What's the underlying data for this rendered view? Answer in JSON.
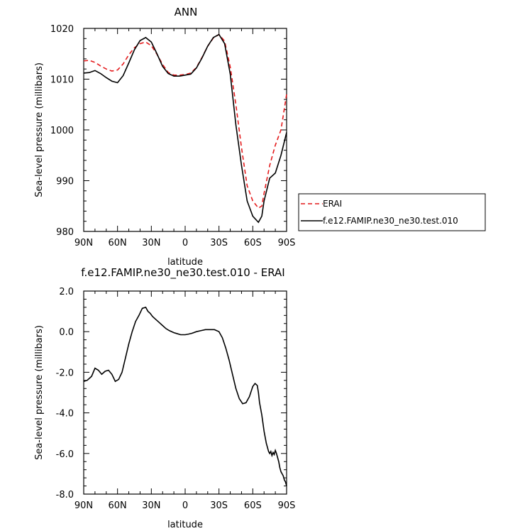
{
  "colors": {
    "erai": "#e41a1c",
    "model": "#000000",
    "axes": "#000000",
    "background": "#ffffff"
  },
  "chart_data": [
    {
      "type": "line",
      "title": "ANN",
      "xlabel": "latitude",
      "ylabel": "Sea-level pressure (millibars)",
      "xlim": [
        90,
        -90
      ],
      "ylim": [
        980,
        1020
      ],
      "xticks": [
        90,
        60,
        30,
        0,
        -30,
        -60,
        -90
      ],
      "xtick_labels": [
        "90N",
        "60N",
        "30N",
        "0",
        "30S",
        "60S",
        "90S"
      ],
      "yticks": [
        980,
        990,
        1000,
        1010,
        1020
      ],
      "ytick_labels": [
        "980",
        "990",
        "1000",
        "1010",
        "1020"
      ],
      "legend": {
        "placement": "right",
        "entries": [
          "ERAI",
          "f.e12.FAMIP.ne30_ne30.test.010"
        ]
      },
      "series": [
        {
          "name": "ERAI",
          "style": "dashed",
          "color": "#e41a1c",
          "x": [
            90,
            85,
            80,
            75,
            70,
            65,
            60,
            55,
            50,
            45,
            40,
            35,
            30,
            25,
            20,
            15,
            10,
            5,
            0,
            -5,
            -10,
            -15,
            -20,
            -25,
            -30,
            -35,
            -40,
            -45,
            -50,
            -55,
            -60,
            -65,
            -68,
            -70,
            -75,
            -80,
            -85,
            -90
          ],
          "y": [
            1013.6,
            1013.7,
            1013.3,
            1012.6,
            1012.0,
            1011.6,
            1011.8,
            1013.0,
            1014.8,
            1016.2,
            1017.0,
            1017.3,
            1016.6,
            1014.9,
            1012.9,
            1011.3,
            1010.8,
            1010.8,
            1010.9,
            1011.2,
            1012.3,
            1014.3,
            1016.5,
            1018.1,
            1018.8,
            1017.5,
            1012.4,
            1005.0,
            996.5,
            989.0,
            986.0,
            984.6,
            985.0,
            987.5,
            993.0,
            997.0,
            1000.0,
            1007.0
          ]
        },
        {
          "name": "f.e12.FAMIP.ne30_ne30.test.010",
          "style": "solid",
          "color": "#000000",
          "x": [
            90,
            85,
            80,
            75,
            70,
            65,
            60,
            55,
            50,
            45,
            40,
            35,
            30,
            25,
            20,
            15,
            10,
            5,
            0,
            -5,
            -10,
            -15,
            -20,
            -25,
            -30,
            -35,
            -40,
            -45,
            -50,
            -55,
            -60,
            -65,
            -68,
            -70,
            -75,
            -80,
            -85,
            -90
          ],
          "y": [
            1011.2,
            1011.3,
            1011.7,
            1011.1,
            1010.3,
            1009.6,
            1009.3,
            1010.7,
            1013.2,
            1015.8,
            1017.6,
            1018.2,
            1017.3,
            1015.0,
            1012.5,
            1011.1,
            1010.6,
            1010.6,
            1010.8,
            1011.0,
            1012.2,
            1014.2,
            1016.5,
            1018.2,
            1018.8,
            1017.0,
            1011.0,
            1001.0,
            993.0,
            986.0,
            983.0,
            981.8,
            983.0,
            986.0,
            990.5,
            991.5,
            995.0,
            999.5
          ]
        }
      ]
    },
    {
      "type": "line",
      "title": "f.e12.FAMIP.ne30_ne30.test.010 - ERAI",
      "xlabel": "latitude",
      "ylabel": "Sea-level pressure (millibars)",
      "xlim": [
        90,
        -90
      ],
      "ylim": [
        -8.0,
        2.0
      ],
      "xticks": [
        90,
        60,
        30,
        0,
        -30,
        -60,
        -90
      ],
      "xtick_labels": [
        "90N",
        "60N",
        "30N",
        "0",
        "30S",
        "60S",
        "90S"
      ],
      "yticks": [
        -8.0,
        -6.0,
        -4.0,
        -2.0,
        0.0,
        2.0
      ],
      "ytick_labels": [
        "-8.0",
        "-6.0",
        "-4.0",
        "-2.0",
        "0.0",
        "2.0"
      ],
      "series": [
        {
          "style": "solid",
          "color": "#000000",
          "x": [
            90,
            87,
            85,
            83,
            80,
            77,
            74,
            71,
            68,
            65,
            62,
            59,
            56,
            53,
            50,
            47,
            44,
            41,
            38,
            35,
            33,
            31,
            29,
            26,
            23,
            20,
            17,
            14,
            10,
            7,
            4,
            0,
            -3,
            -6,
            -10,
            -14,
            -18,
            -22,
            -26,
            -30,
            -33,
            -36,
            -39,
            -42,
            -45,
            -48,
            -51,
            -54,
            -57,
            -60,
            -62,
            -64,
            -65,
            -66,
            -67,
            -68,
            -69,
            -70,
            -71,
            -72,
            -73,
            -74,
            -75,
            -76,
            -77,
            -78,
            -79,
            -80,
            -81,
            -82,
            -83,
            -84,
            -85,
            -86,
            -87,
            -88,
            -89,
            -90
          ],
          "y": [
            -2.45,
            -2.4,
            -2.3,
            -2.2,
            -1.8,
            -1.9,
            -2.1,
            -1.95,
            -1.9,
            -2.1,
            -2.45,
            -2.35,
            -2.0,
            -1.3,
            -0.6,
            0.0,
            0.5,
            0.8,
            1.15,
            1.2,
            1.0,
            0.9,
            0.75,
            0.6,
            0.45,
            0.3,
            0.15,
            0.05,
            -0.05,
            -0.1,
            -0.15,
            -0.15,
            -0.12,
            -0.08,
            0.0,
            0.05,
            0.1,
            0.1,
            0.1,
            0.0,
            -0.3,
            -0.8,
            -1.4,
            -2.1,
            -2.8,
            -3.3,
            -3.55,
            -3.5,
            -3.2,
            -2.7,
            -2.55,
            -2.65,
            -3.0,
            -3.5,
            -3.8,
            -4.1,
            -4.5,
            -4.9,
            -5.2,
            -5.5,
            -5.7,
            -5.9,
            -6.0,
            -5.9,
            -6.1,
            -5.95,
            -6.05,
            -5.85,
            -6.0,
            -6.2,
            -6.4,
            -6.7,
            -6.9,
            -7.0,
            -7.1,
            -7.3,
            -7.4,
            -7.6
          ]
        }
      ]
    }
  ]
}
